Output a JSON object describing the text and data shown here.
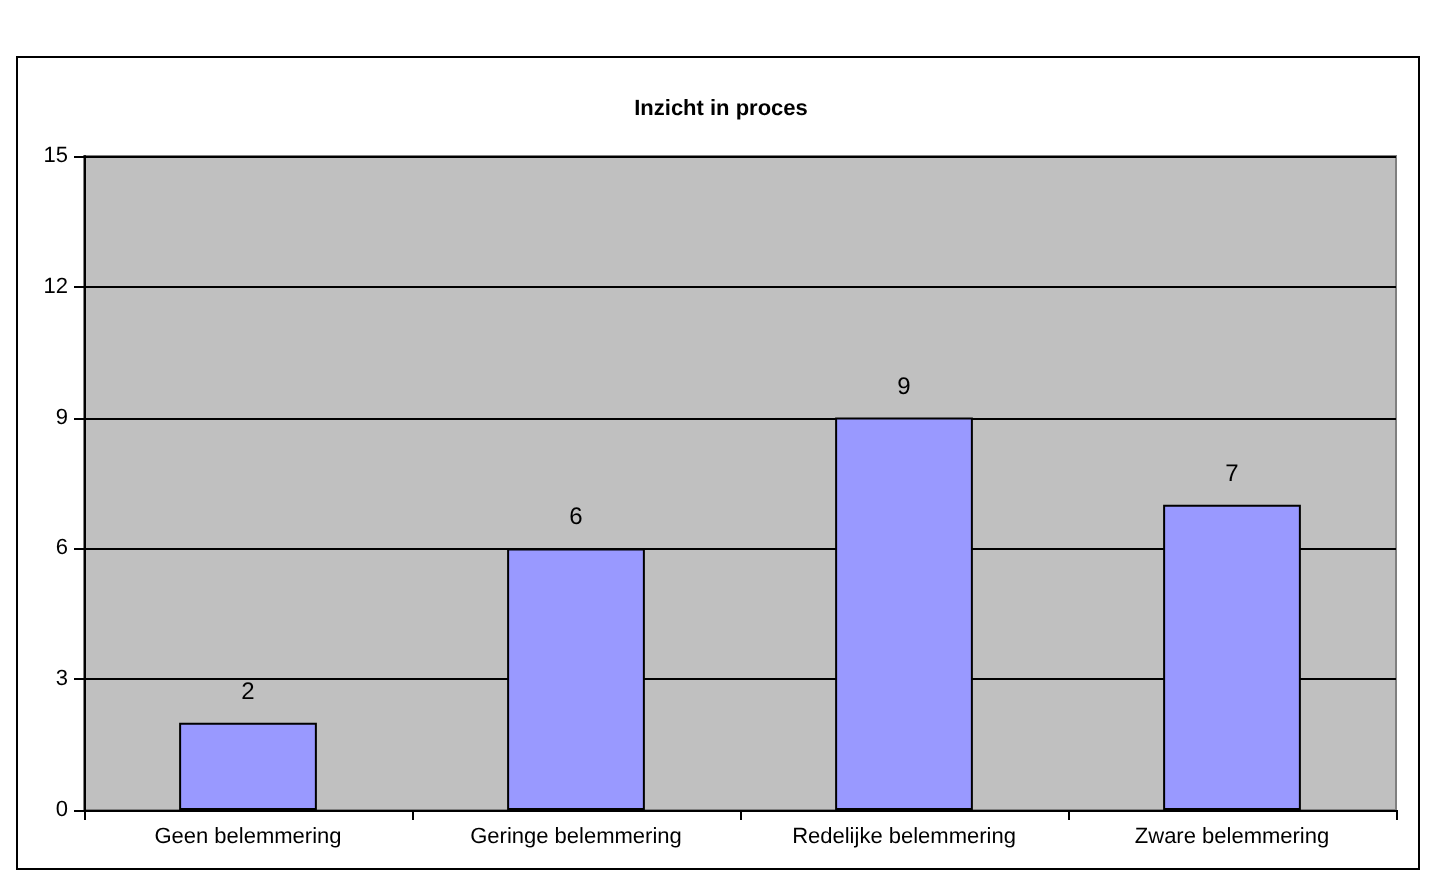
{
  "chart_data": {
    "type": "bar",
    "title": "Inzicht in proces",
    "categories": [
      "Geen belemmering",
      "Geringe belemmering",
      "Redelijke belemmering",
      "Zware belemmering"
    ],
    "values": [
      2,
      6,
      9,
      7
    ],
    "color": "#9999ff",
    "ylim": [
      0,
      15
    ],
    "yticks": [
      0,
      3,
      6,
      9,
      12,
      15
    ],
    "grid": "y",
    "data_labels": true
  }
}
